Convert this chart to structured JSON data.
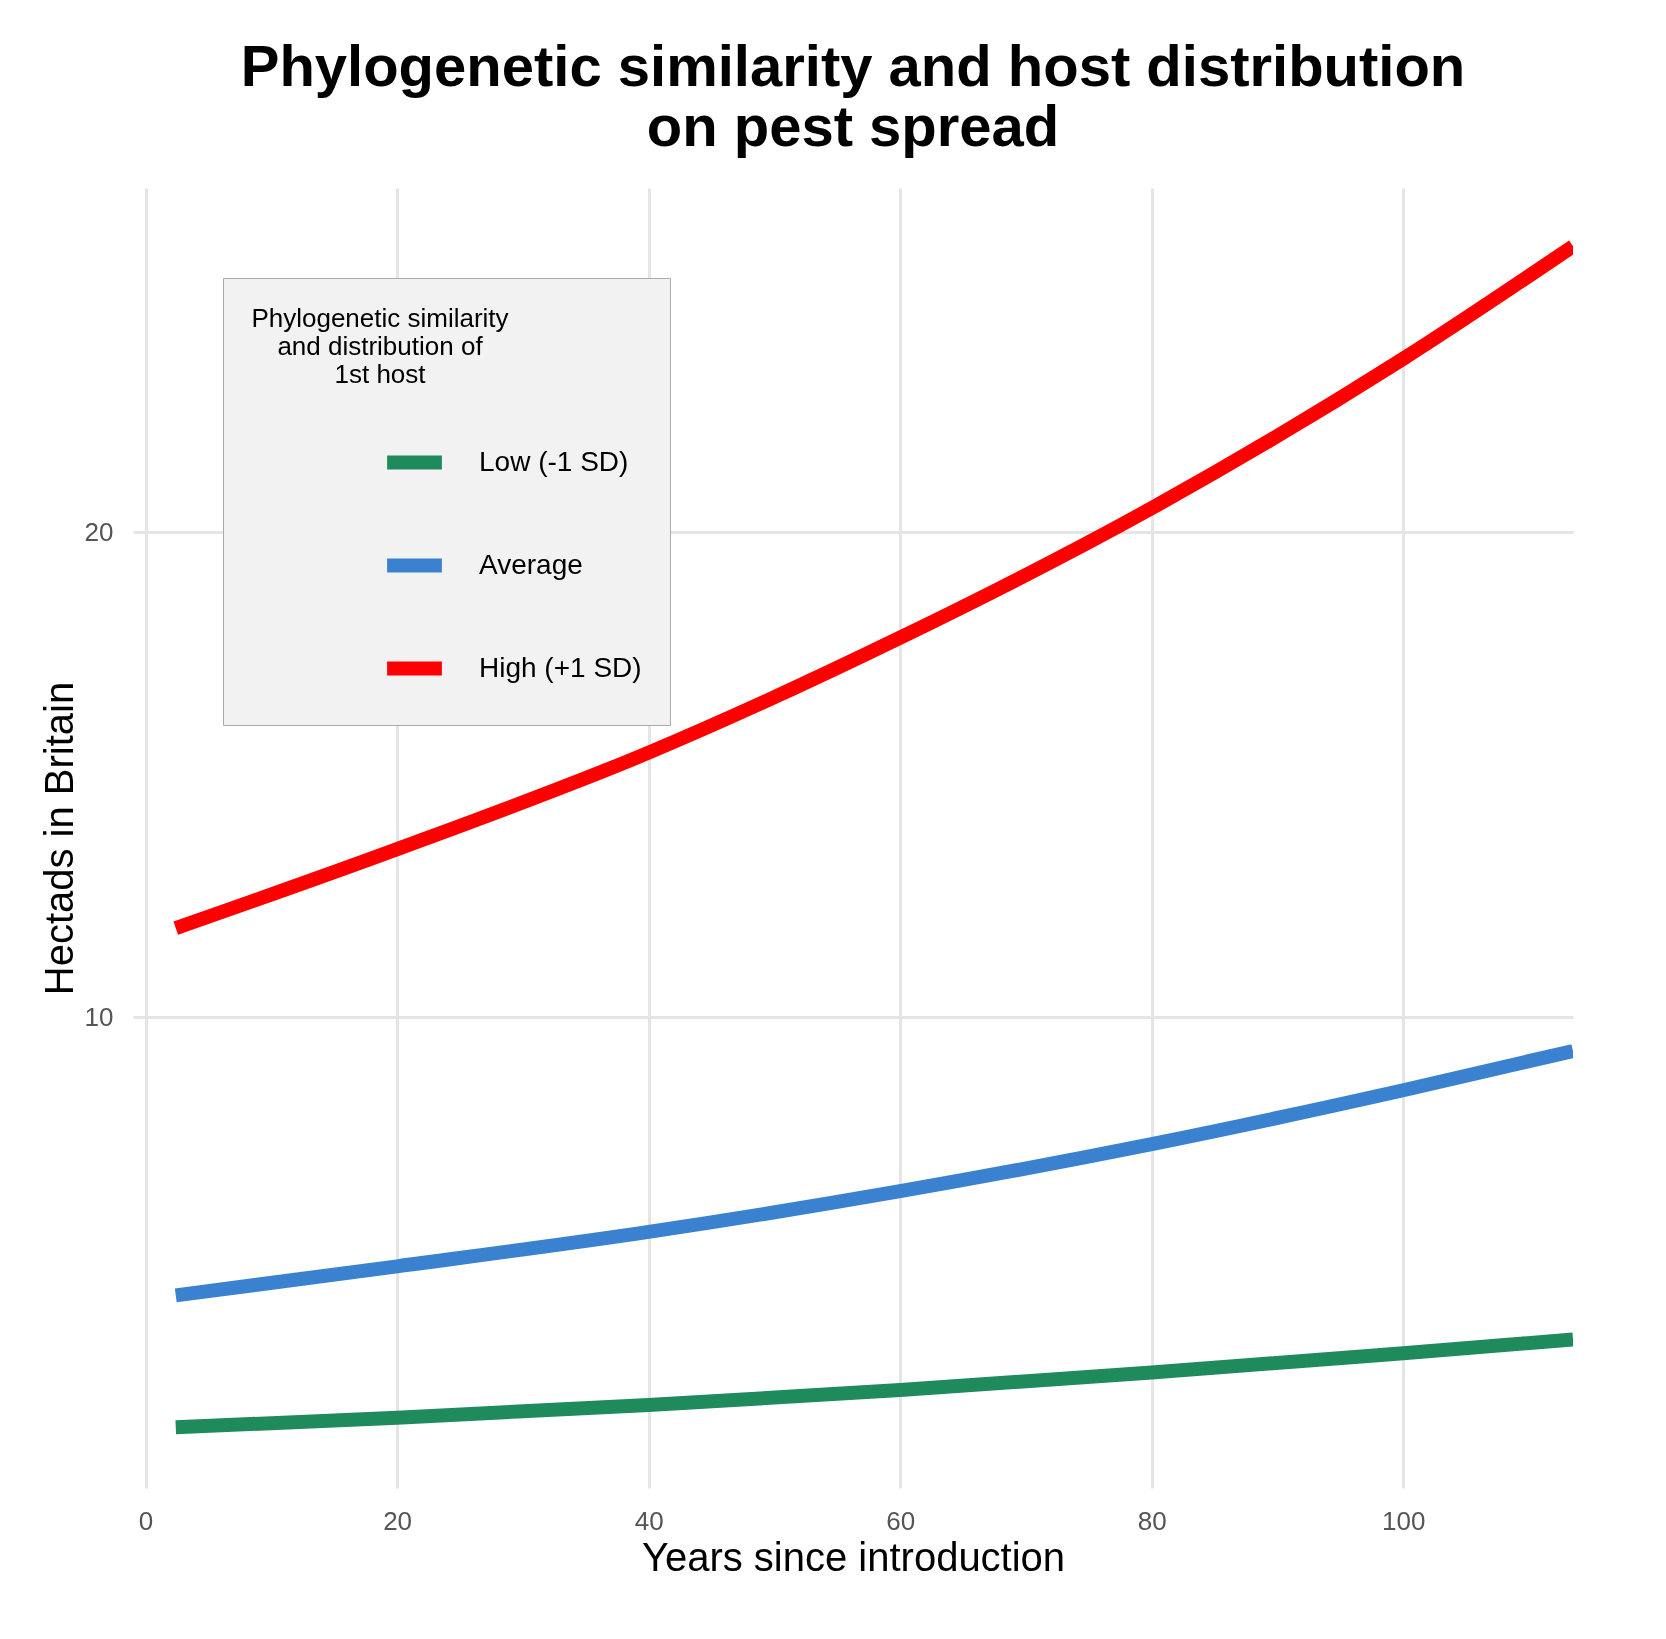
{
  "chart_data": {
    "type": "line",
    "title": "Phylogenetic similarity and host distribution\non pest spread",
    "xlabel": "Years since introduction",
    "ylabel": "Hectads in Britain",
    "legend_title": "Phylogenetic similarity\nand distribution of\n1st host",
    "x": [
      2.4,
      20,
      40,
      60,
      80,
      100,
      113.5
    ],
    "series": [
      {
        "name": "Low (-1 SD)",
        "color": "#1f8a5c",
        "values": [
          1.55,
          1.75,
          2.01,
          2.32,
          2.68,
          3.08,
          3.36
        ]
      },
      {
        "name": "Average",
        "color": "#3a82d0",
        "values": [
          4.27,
          4.87,
          5.58,
          6.42,
          7.39,
          8.5,
          9.31
        ]
      },
      {
        "name": "High (+1 SD)",
        "color": "#ff0000",
        "values": [
          11.84,
          13.47,
          15.46,
          17.83,
          20.5,
          23.58,
          25.9
        ]
      }
    ],
    "xlim": [
      -1,
      113.5
    ],
    "ylim": [
      0.3,
      27.1
    ],
    "xticks": [
      0,
      20,
      40,
      60,
      80,
      100
    ],
    "yticks": [
      10,
      20
    ],
    "grid": true,
    "legend": "top left",
    "line_style": "solid",
    "marker": "none"
  }
}
